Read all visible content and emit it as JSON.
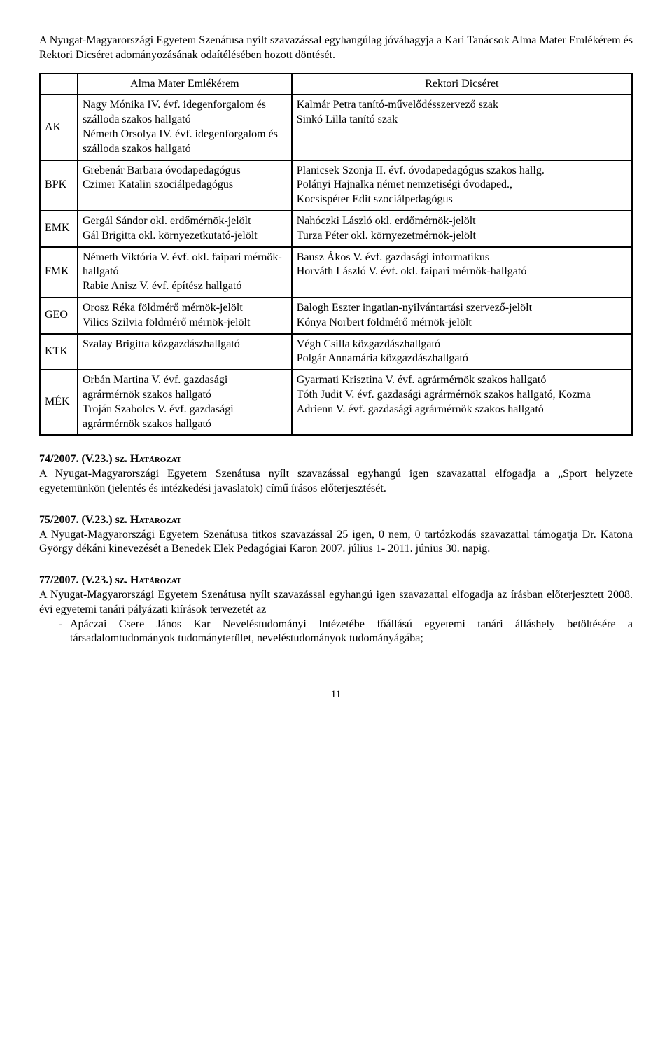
{
  "intro": "A Nyugat-Magyarországi Egyetem Szenátusa nyílt szavazással egyhangúlag jóváhagyja a Kari Tanácsok Alma Mater Emlékérem és Rektori Dicséret adományozásának odaítélésében hozott döntését.",
  "table": {
    "headers": {
      "left": "Alma Mater Emlékérem",
      "right": "Rektori Dicséret"
    },
    "rows": [
      {
        "code": "AK",
        "left": "Nagy Mónika IV. évf. idegenforgalom és szálloda szakos hallgató\nNémeth Orsolya IV. évf. idegenforgalom és szálloda szakos hallgató",
        "right": "Kalmár Petra tanító-művelődésszervező szak\nSinkó Lilla tanító szak"
      },
      {
        "code": "BPK",
        "left": "Grebenár Barbara óvodapedagógus\nCzimer Katalin szociálpedagógus",
        "right": "Planicsek Szonja II. évf. óvodapedagógus szakos hallg.\nPolányi Hajnalka német nemzetiségi óvodaped.,\nKocsispéter Edit szociálpedagógus"
      },
      {
        "code": "EMK",
        "left": "Gergál Sándor okl. erdőmérnök-jelölt\nGál Brigitta okl. környezetkutató-jelölt",
        "right": "Nahóczki László okl. erdőmérnök-jelölt\nTurza Péter okl. környezetmérnök-jelölt"
      },
      {
        "code": "FMK",
        "left": "Németh Viktória V. évf. okl. faipari mérnök-hallgató\nRabie Anisz V. évf. építész hallgató",
        "right": "Bausz Ákos V. évf. gazdasági informatikus\nHorváth László V. évf. okl. faipari mérnök-hallgató"
      },
      {
        "code": "GEO",
        "left": "Orosz Réka földmérő mérnök-jelölt\n Vilics Szilvia földmérő mérnök-jelölt",
        "right": "Balogh Eszter ingatlan-nyilvántartási szervező-jelölt\nKónya Norbert földmérő mérnök-jelölt"
      },
      {
        "code": "KTK",
        "left": "Szalay Brigitta közgazdászhallgató",
        "right": "Végh Csilla közgazdászhallgató\nPolgár Annamária közgazdászhallgató"
      },
      {
        "code": "MÉK",
        "left": "Orbán Martina V. évf. gazdasági agrármérnök szakos hallgató\nTroján Szabolcs  V. évf. gazdasági agrármérnök szakos hallgató",
        "right": "Gyarmati Krisztina V. évf. agrármérnök szakos hallgató\nTóth Judit V. évf. gazdasági agrármérnök szakos hallgató, Kozma Adrienn V. évf. gazdasági agrármérnök szakos hallgató"
      }
    ]
  },
  "sections": [
    {
      "num": "74/2007. (V.23.) sz. ",
      "word": "Határozat",
      "body": "A Nyugat-Magyarországi Egyetem Szenátusa nyílt szavazással egyhangú igen szavazattal elfogadja a „Sport helyzete egyetemünkön (jelentés és intézkedési javaslatok) című írásos előterjesztését."
    },
    {
      "num": "75/2007. (V.23.) sz. ",
      "word": "Határozat",
      "body": "A Nyugat-Magyarországi Egyetem Szenátusa titkos szavazással 25 igen, 0 nem, 0 tartózkodás szavazattal támogatja Dr. Katona György dékáni kinevezését a Benedek Elek Pedagógiai Karon 2007. július 1- 2011. június 30. napig."
    },
    {
      "num": "77/2007. (V.23.) sz. ",
      "word": "Határozat",
      "body": "A Nyugat-Magyarországi Egyetem Szenátusa nyílt szavazással egyhangú igen szavazattal elfogadja az írásban előterjesztett 2008. évi egyetemi tanári pályázati kiírások tervezetét az",
      "bullets": [
        "Apáczai Csere János Kar Neveléstudományi Intézetébe főállású egyetemi tanári álláshely betöltésére a társadalomtudományok tudományterület, neveléstudományok tudományágába;"
      ]
    }
  ],
  "pageNumber": "11"
}
